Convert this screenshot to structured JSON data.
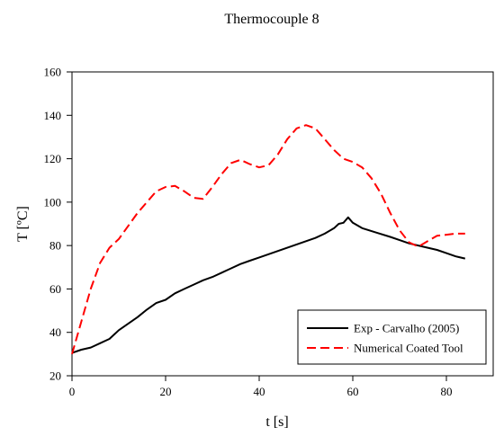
{
  "chart_data": {
    "type": "line",
    "title": "Thermocouple 8",
    "xlabel": "t [s]",
    "ylabel": "T [ºC]",
    "xlim": [
      0,
      90
    ],
    "ylim": [
      20,
      160
    ],
    "xticks": [
      0,
      20,
      40,
      60,
      80
    ],
    "yticks": [
      20,
      40,
      60,
      80,
      100,
      120,
      140,
      160
    ],
    "grid": false,
    "legend": "bottom-right",
    "series": [
      {
        "name": "Exp - Carvalho (2005)",
        "color": "#000000",
        "dash": "solid",
        "x": [
          0,
          2,
          4,
          6,
          8,
          10,
          12,
          14,
          16,
          18,
          20,
          22,
          24,
          26,
          28,
          30,
          32,
          34,
          36,
          38,
          40,
          42,
          44,
          46,
          48,
          50,
          52,
          54,
          56,
          57,
          58,
          59,
          60,
          62,
          65,
          68,
          70,
          72,
          75,
          78,
          80,
          82,
          84
        ],
        "y": [
          30.5,
          32,
          33,
          35,
          37,
          41,
          44,
          47,
          50.5,
          53.5,
          55,
          58,
          60,
          62,
          64,
          65.5,
          67.5,
          69.5,
          71.5,
          73,
          74.5,
          76,
          77.5,
          79,
          80.5,
          82,
          83.5,
          85.5,
          88,
          90,
          90.5,
          93,
          90.5,
          88,
          86,
          84,
          82.5,
          81,
          79.5,
          78,
          76.5,
          75,
          74
        ]
      },
      {
        "name": "Numerical Coated Tool",
        "color": "#ff0000",
        "dash": "dashed",
        "x": [
          0,
          2,
          4,
          6,
          8,
          10,
          12,
          14,
          16,
          18,
          20,
          22,
          24,
          26,
          28,
          30,
          32,
          34,
          36,
          38,
          40,
          42,
          44,
          46,
          48,
          50,
          52,
          54,
          56,
          58,
          60,
          62,
          64,
          66,
          68,
          70,
          72,
          74,
          76,
          78,
          80,
          82,
          84
        ],
        "y": [
          30,
          45,
          60,
          72,
          79,
          83,
          89,
          95,
          100,
          105,
          107,
          107.5,
          105,
          102,
          101.5,
          107,
          113,
          118,
          119.5,
          117.5,
          116,
          117,
          122,
          129,
          134,
          135.5,
          134,
          129,
          124,
          120,
          118.5,
          116,
          111,
          104,
          95,
          87,
          81.5,
          79.5,
          82,
          84.5,
          85,
          85.5,
          85.5
        ]
      }
    ]
  }
}
